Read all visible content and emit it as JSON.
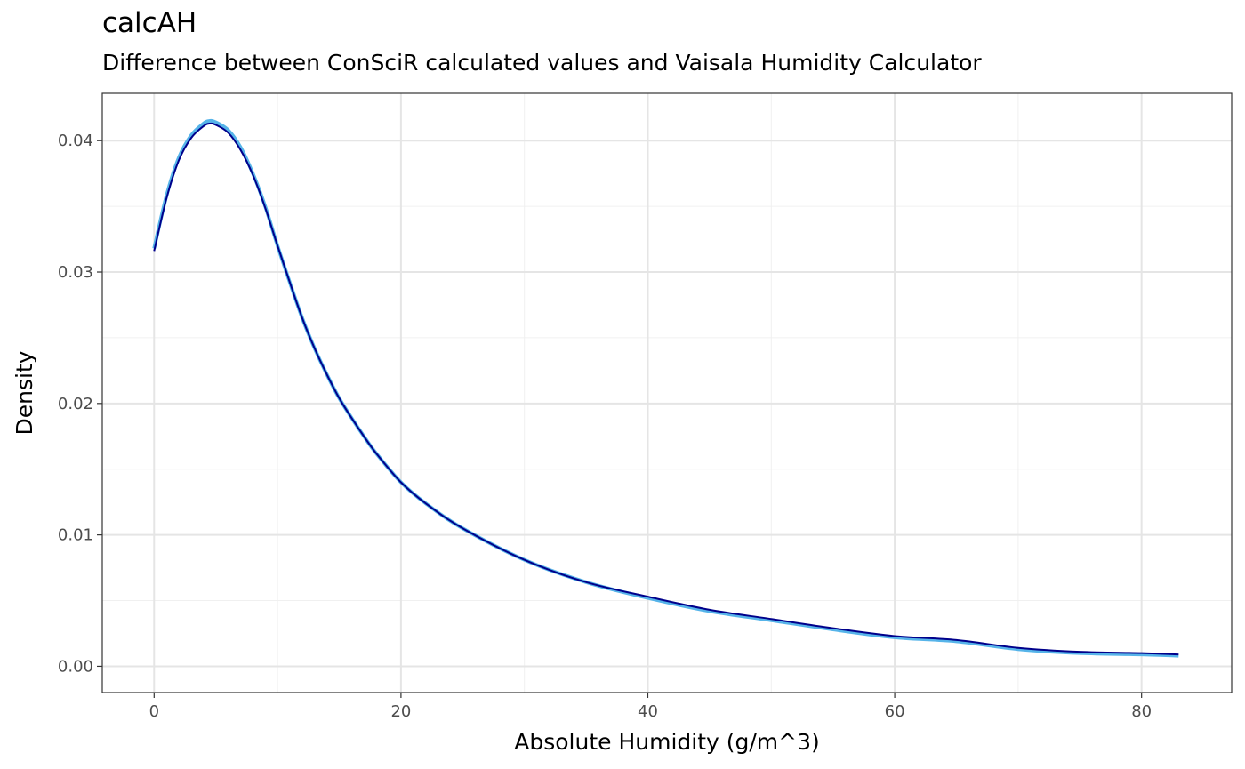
{
  "chart_data": {
    "type": "line",
    "title": "calcAH",
    "subtitle": "Difference between ConSciR calculated values and Vaisala Humidity Calculator",
    "xlabel": "Absolute Humidity (g/m^3)",
    "ylabel": "Density",
    "xlim": [
      -4.2,
      87.3
    ],
    "ylim": [
      -0.002,
      0.0436
    ],
    "x_ticks": [
      0,
      20,
      40,
      60,
      80
    ],
    "x_tick_labels": [
      "0",
      "20",
      "40",
      "60",
      "80"
    ],
    "y_ticks": [
      0.0,
      0.01,
      0.02,
      0.03,
      0.04
    ],
    "y_tick_labels": [
      "0.00",
      "0.01",
      "0.02",
      "0.03",
      "0.04"
    ],
    "grid": true,
    "series": [
      {
        "color": "#56b4e9",
        "x": [
          0,
          1,
          2,
          3,
          4,
          4.5,
          5,
          6,
          7,
          8,
          9,
          10,
          11,
          12,
          13,
          14,
          15,
          16,
          17,
          18,
          20,
          22,
          25,
          30,
          35,
          40,
          45,
          50,
          55,
          60,
          65,
          70,
          75,
          80,
          83
        ],
        "y": [
          0.0318,
          0.0358,
          0.0387,
          0.0404,
          0.0413,
          0.0415,
          0.0414,
          0.0408,
          0.0395,
          0.0375,
          0.035,
          0.032,
          0.0292,
          0.0265,
          0.0242,
          0.0222,
          0.0204,
          0.0189,
          0.0175,
          0.0162,
          0.014,
          0.0124,
          0.0105,
          0.0081,
          0.0064,
          0.0052,
          0.0042,
          0.0035,
          0.0028,
          0.0022,
          0.0019,
          0.0013,
          0.001,
          0.0009,
          0.0008
        ]
      },
      {
        "color": "#00008b",
        "x": [
          0,
          1,
          2,
          3,
          4,
          4.5,
          5,
          6,
          7,
          8,
          9,
          10,
          11,
          12,
          13,
          14,
          15,
          16,
          17,
          18,
          20,
          22,
          25,
          30,
          35,
          40,
          45,
          50,
          55,
          60,
          65,
          70,
          75,
          80,
          83
        ],
        "y": [
          0.0316,
          0.0356,
          0.0385,
          0.0402,
          0.0411,
          0.0413,
          0.0412,
          0.0406,
          0.0393,
          0.0374,
          0.0349,
          0.032,
          0.0292,
          0.0265,
          0.0242,
          0.0222,
          0.0204,
          0.0189,
          0.0175,
          0.0162,
          0.014,
          0.0124,
          0.0105,
          0.0081,
          0.0064,
          0.0053,
          0.0043,
          0.0036,
          0.0029,
          0.0023,
          0.002,
          0.0014,
          0.0011,
          0.001,
          0.0009
        ]
      }
    ]
  }
}
